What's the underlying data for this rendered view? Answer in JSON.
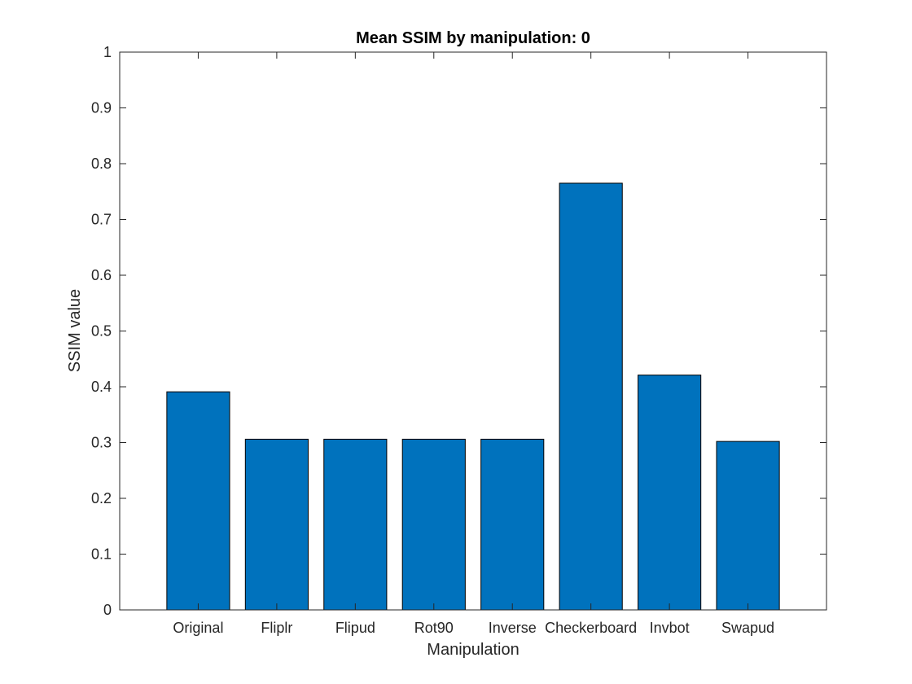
{
  "chart_data": {
    "type": "bar",
    "title": "Mean SSIM by manipulation: 0",
    "xlabel": "Manipulation",
    "ylabel": "SSIM value",
    "categories": [
      "Original",
      "Fliplr",
      "Flipud",
      "Rot90",
      "Inverse",
      "Checkerboard",
      "Invbot",
      "Swapud"
    ],
    "values": [
      0.391,
      0.306,
      0.306,
      0.306,
      0.306,
      0.765,
      0.421,
      0.302
    ],
    "ylim": [
      0,
      1
    ],
    "yticks": [
      0,
      0.1,
      0.2,
      0.3,
      0.4,
      0.5,
      0.6,
      0.7,
      0.8,
      0.9,
      1
    ],
    "ytick_labels": [
      "0",
      "0.1",
      "0.2",
      "0.3",
      "0.4",
      "0.5",
      "0.6",
      "0.7",
      "0.8",
      "0.9",
      "1"
    ],
    "bar_color": "#0072BD",
    "grid": false,
    "legend": "none"
  }
}
